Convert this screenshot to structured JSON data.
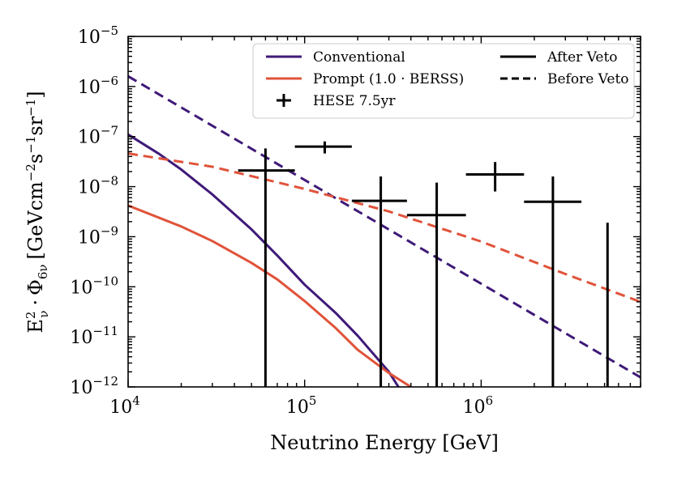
{
  "chart_data": {
    "type": "line",
    "xscale": "log",
    "yscale": "log",
    "xlabel": "Neutrino Energy [GeV]",
    "ylabel": "Eν² · Φ₆ν [GeV cm⁻² s⁻¹ sr⁻¹]",
    "ylabel_parts": {
      "base": "E",
      "sup": "2",
      "sub": "ν",
      "dot": "·",
      "phi": "Φ",
      "phi_sub": "6ν",
      "unit_open": "[GeVcm",
      "exp1": "−2",
      "s": "s",
      "exp2": "−1",
      "sr": "sr",
      "exp3": "−1",
      "unit_close": "]"
    },
    "xlim": [
      10000,
      8000000
    ],
    "ylim": [
      1e-12,
      1e-05
    ],
    "x_ticks": [
      {
        "value": 10000,
        "base": "10",
        "exp": "4"
      },
      {
        "value": 100000,
        "base": "10",
        "exp": "5"
      },
      {
        "value": 1000000,
        "base": "10",
        "exp": "6"
      }
    ],
    "y_ticks": [
      {
        "value": 1e-12,
        "base": "10",
        "exp": "−12"
      },
      {
        "value": 1e-11,
        "base": "10",
        "exp": "−11"
      },
      {
        "value": 1e-10,
        "base": "10",
        "exp": "−10"
      },
      {
        "value": 1e-09,
        "base": "10",
        "exp": "−9"
      },
      {
        "value": 1e-08,
        "base": "10",
        "exp": "−8"
      },
      {
        "value": 1e-07,
        "base": "10",
        "exp": "−7"
      },
      {
        "value": 1e-06,
        "base": "10",
        "exp": "−6"
      },
      {
        "value": 1e-05,
        "base": "10",
        "exp": "−5"
      }
    ],
    "series": [
      {
        "name": "Conventional",
        "key": "conv-after",
        "color": "#3f1a78",
        "style": "solid",
        "x": [
          10000,
          15000,
          20000,
          30000,
          50000,
          70000,
          100000,
          150000,
          200000,
          300000,
          340000
        ],
        "y": [
          1.1e-07,
          4.5e-08,
          2.2e-08,
          7e-09,
          1.4e-09,
          4.2e-10,
          1.1e-10,
          3e-11,
          1.05e-11,
          2e-12,
          1e-12
        ]
      },
      {
        "name": "Prompt (1.0 · BERSS)",
        "key": "prompt-after",
        "color": "#e0533a",
        "style": "solid",
        "x": [
          10000,
          20000,
          30000,
          50000,
          70000,
          100000,
          150000,
          200000,
          300000,
          400000
        ],
        "y": [
          4.2e-09,
          1.6e-09,
          8.2e-10,
          3e-10,
          1.4e-10,
          5.2e-11,
          1.5e-11,
          5.5e-12,
          1.9e-12,
          1e-12
        ]
      },
      {
        "name": "Conventional (Before Veto)",
        "key": "conv-before",
        "color": "#3f1a78",
        "style": "dashed",
        "x": [
          10000,
          8000000
        ],
        "y": [
          1.6e-06,
          1.55e-12
        ]
      },
      {
        "name": "Prompt (Before Veto)",
        "key": "prompt-before",
        "color": "#e0533a",
        "style": "dashed",
        "x": [
          10000,
          30000,
          100000,
          300000,
          1000000,
          3000000,
          8000000
        ],
        "y": [
          4.6e-08,
          2.5e-08,
          9e-09,
          3.2e-09,
          8e-10,
          1.8e-10,
          5e-11
        ]
      }
    ],
    "hese_points": [
      {
        "x": 60000,
        "xlo": 42000,
        "xhi": 88000,
        "y": 2.1e-08,
        "ylo": 1e-12,
        "yhi": 5.8e-08
      },
      {
        "x": 130000,
        "xlo": 88000,
        "xhi": 185000,
        "y": 6.3e-08,
        "ylo": 4.6e-08,
        "yhi": 8e-08
      },
      {
        "x": 270000,
        "xlo": 185000,
        "xhi": 380000,
        "y": 5.2e-09,
        "ylo": 1e-12,
        "yhi": 1.6e-08
      },
      {
        "x": 560000,
        "xlo": 380000,
        "xhi": 820000,
        "y": 2.7e-09,
        "ylo": 1e-12,
        "yhi": 1.2e-08
      },
      {
        "x": 1200000,
        "xlo": 820000,
        "xhi": 1750000,
        "y": 1.75e-08,
        "ylo": 8e-09,
        "yhi": 3.1e-08
      },
      {
        "x": 2550000,
        "xlo": 1750000,
        "xhi": 3700000,
        "y": 5e-09,
        "ylo": 1e-12,
        "yhi": 1.6e-08
      },
      {
        "x": 5200000,
        "xlo": 5200000,
        "xhi": 5200000,
        "y": 1.9e-09,
        "ylo": 1e-12,
        "yhi": 1.9e-09
      }
    ],
    "legend": {
      "placement": "top-right",
      "entries": [
        {
          "key": "conventional",
          "label": "Conventional",
          "color": "#3f1a78",
          "style": "solid"
        },
        {
          "key": "prompt",
          "label": "Prompt (1.0 · BERSS)",
          "color": "#e0533a",
          "style": "solid"
        },
        {
          "key": "hese",
          "label": "HESE 7.5yr",
          "color": "#000000",
          "style": "errorbar"
        },
        {
          "key": "after",
          "label": "After Veto",
          "color": "#000000",
          "style": "solid"
        },
        {
          "key": "before",
          "label": "Before Veto",
          "color": "#000000",
          "style": "dashed"
        }
      ]
    }
  }
}
